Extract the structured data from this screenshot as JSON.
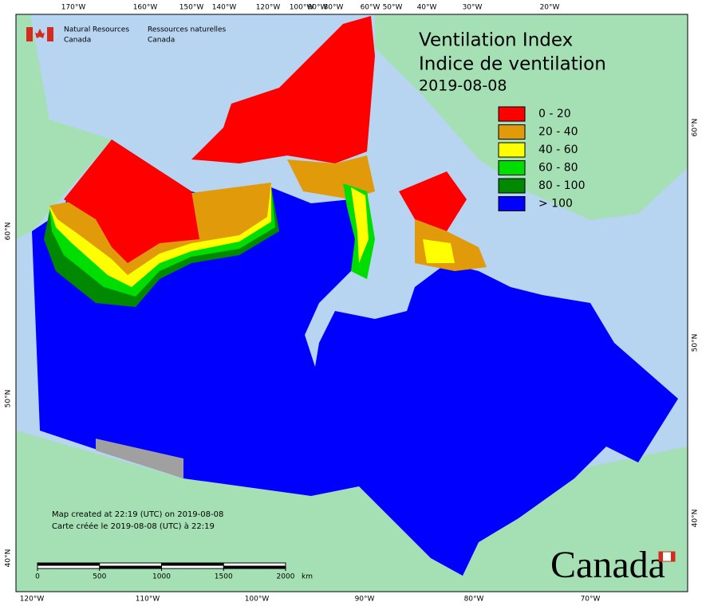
{
  "title": "Ventilation Index",
  "title_fr": "Indice de ventilation",
  "date": "2019-08-08",
  "agency": {
    "en": [
      "Natural Resources",
      "Canada"
    ],
    "fr": [
      "Ressources naturelles",
      "Canada"
    ]
  },
  "legend": [
    {
      "label": "0 - 20",
      "color": "#ff0000"
    },
    {
      "label": "20 - 40",
      "color": "#e09a0a"
    },
    {
      "label": "40 - 60",
      "color": "#ffff00"
    },
    {
      "label": "60 - 80",
      "color": "#00dd00"
    },
    {
      "label": "80 - 100",
      "color": "#008800"
    },
    {
      "label": "> 100",
      "color": "#0000ff"
    }
  ],
  "credits": [
    "Map created at 22:19 (UTC) on 2019-08-08",
    "Carte créée le 2019-08-08 (UTC) à 22:19"
  ],
  "scale_bar": {
    "ticks": [
      0,
      500,
      1000,
      1500,
      2000
    ],
    "unit": "km"
  },
  "graticule": {
    "top": [
      "170°W",
      "160°W",
      "150°W",
      "140°W",
      "120°W",
      "100°W",
      "90°W",
      "80°W",
      "60°W",
      "50°W",
      "40°W",
      "30°W",
      "20°W"
    ],
    "bottom": [
      "120°W",
      "110°W",
      "100°W",
      "90°W",
      "80°W",
      "70°W"
    ],
    "left": [
      "60°N",
      "50°N",
      "40°N"
    ],
    "right": [
      "60°N",
      "50°N",
      "40°N"
    ]
  },
  "wordmark": "Canada"
}
